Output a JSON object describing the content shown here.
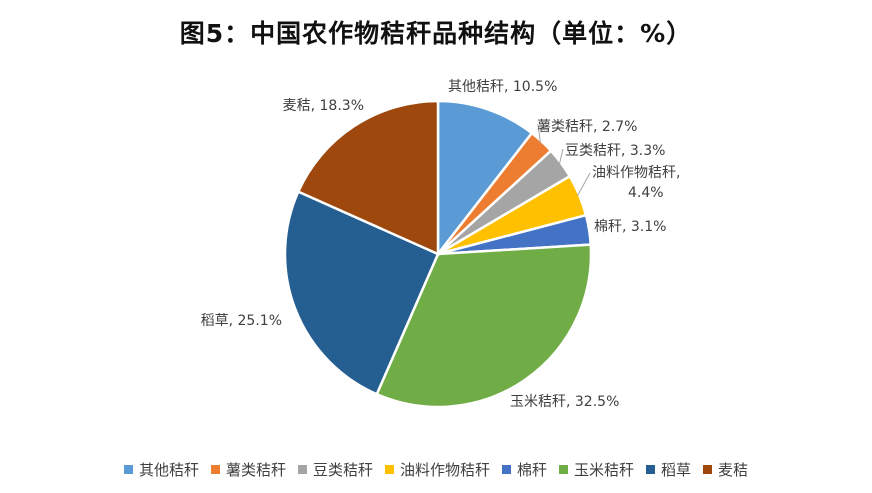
{
  "title": "图5：中国农作物秸秆品种结构（单位：%）",
  "chart_data": {
    "type": "pie",
    "title": "图5：中国农作物秸秆品种结构（单位：%）",
    "unit": "%",
    "slices": [
      {
        "name": "其他秸秆",
        "value": 10.5,
        "label": "其他秸秆, 10.5%",
        "color": "#5B9BD5"
      },
      {
        "name": "薯类秸秆",
        "value": 2.7,
        "label": "薯类秸秆, 2.7%",
        "color": "#ED7D31"
      },
      {
        "name": "豆类秸秆",
        "value": 3.3,
        "label": "豆类秸秆, 3.3%",
        "color": "#A5A5A5"
      },
      {
        "name": "油料作物秸秆",
        "value": 4.4,
        "label": [
          "油料作物秸秆,",
          "4.4%"
        ],
        "color": "#FFC000"
      },
      {
        "name": "棉秆",
        "value": 3.1,
        "label": "棉秆, 3.1%",
        "color": "#4472C4"
      },
      {
        "name": "玉米秸秆",
        "value": 32.5,
        "label": "玉米秸秆, 32.5%",
        "color": "#70AD47"
      },
      {
        "name": "稻草",
        "value": 25.1,
        "label": "稻草, 25.1%",
        "color": "#255E91"
      },
      {
        "name": "麦秸",
        "value": 18.3,
        "label": "麦秸, 18.3%",
        "color": "#9E480E"
      }
    ],
    "legend_position": "bottom"
  }
}
